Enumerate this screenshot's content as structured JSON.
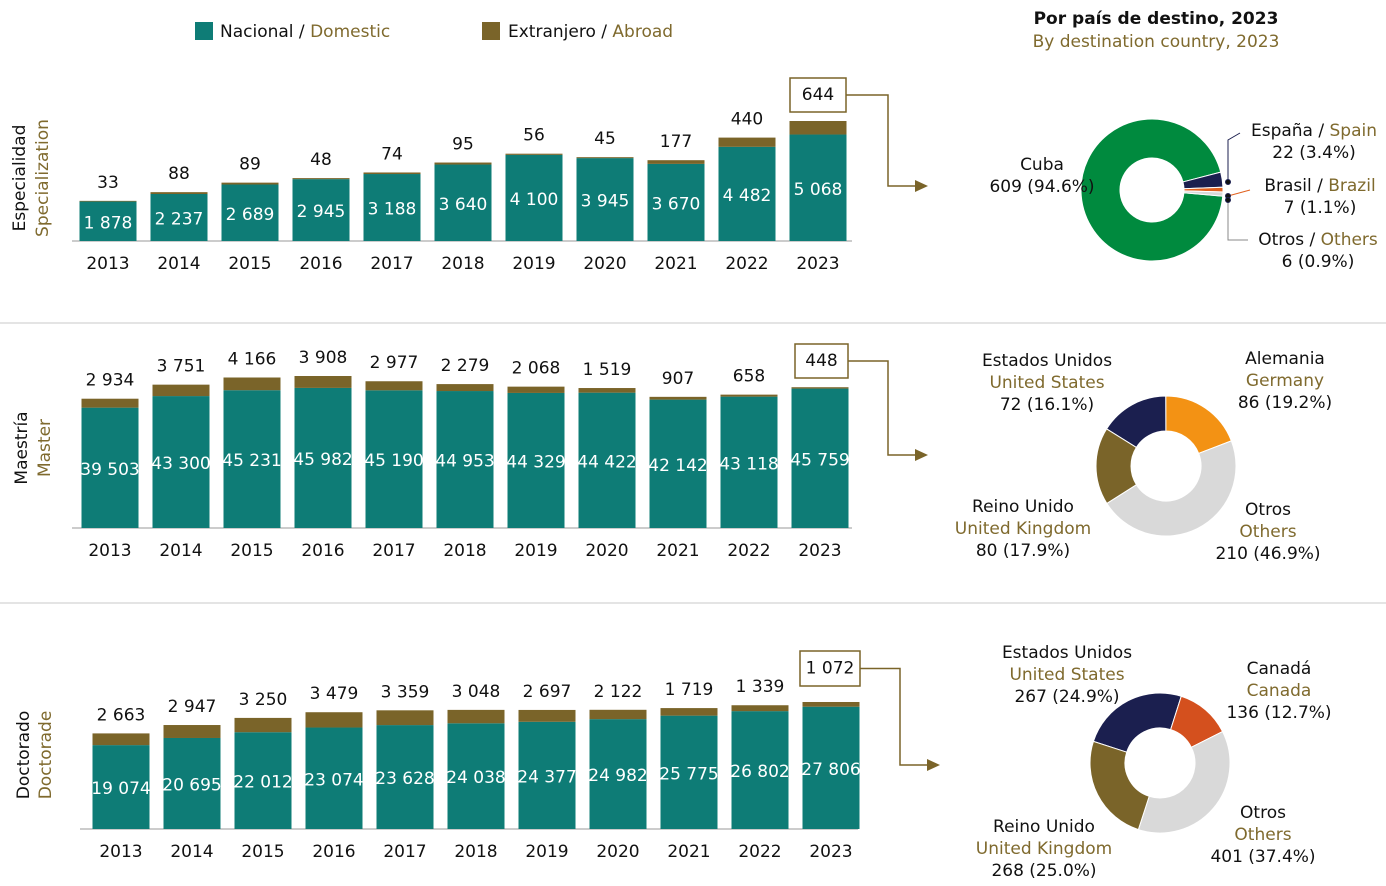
{
  "chart_data": [
    {
      "type": "bar",
      "stacked": true,
      "ylabel": "Especialidad",
      "ylabel_en": "Specialization",
      "categories": [
        "2013",
        "2014",
        "2015",
        "2016",
        "2017",
        "2018",
        "2019",
        "2020",
        "2021",
        "2022",
        "2023"
      ],
      "series": [
        {
          "name": "Nacional / Domestic",
          "color": "#0e7c76",
          "values": [
            1878,
            2237,
            2689,
            2945,
            3188,
            3640,
            4100,
            3945,
            3670,
            4482,
            5068
          ],
          "value_labels": [
            "1 878",
            "2 237",
            "2 689",
            "2 945",
            "3 188",
            "3 640",
            "4 100",
            "3 945",
            "3 670",
            "4 482",
            "5 068"
          ]
        },
        {
          "name": "Extranjero / Abroad",
          "color": "#7a6429",
          "values": [
            33,
            88,
            89,
            48,
            74,
            95,
            56,
            45,
            177,
            440,
            644
          ]
        }
      ]
    },
    {
      "type": "bar",
      "stacked": true,
      "ylabel": "Maestría",
      "ylabel_en": "Master",
      "categories": [
        "2013",
        "2014",
        "2015",
        "2016",
        "2017",
        "2018",
        "2019",
        "2020",
        "2021",
        "2022",
        "2023"
      ],
      "series": [
        {
          "name": "Nacional / Domestic",
          "color": "#0e7c76",
          "values": [
            39503,
            43300,
            45231,
            45982,
            45190,
            44953,
            44329,
            44422,
            42142,
            43118,
            45759
          ],
          "value_labels": [
            "39 503",
            "43 300",
            "45 231",
            "45 982",
            "45 190",
            "44 953",
            "44 329",
            "44 422",
            "42 142",
            "43 118",
            "45 759"
          ]
        },
        {
          "name": "Extranjero / Abroad",
          "color": "#7a6429",
          "values": [
            2934,
            3751,
            4166,
            3908,
            2977,
            2279,
            2068,
            1519,
            907,
            658,
            448
          ],
          "value_labels": [
            "2 934",
            "3 751",
            "4 166",
            "3 908",
            "2 977",
            "2 279",
            "2 068",
            "1 519",
            "907",
            "658",
            "448"
          ]
        }
      ]
    },
    {
      "type": "bar",
      "stacked": true,
      "ylabel": "Doctorado",
      "ylabel_en": "Doctorade",
      "categories": [
        "2013",
        "2014",
        "2015",
        "2016",
        "2017",
        "2018",
        "2019",
        "2020",
        "2021",
        "2022",
        "2023"
      ],
      "series": [
        {
          "name": "Nacional / Domestic",
          "color": "#0e7c76",
          "values": [
            19074,
            20695,
            22012,
            23074,
            23628,
            24038,
            24377,
            24982,
            25775,
            26802,
            27806
          ],
          "value_labels": [
            "19 074",
            "20 695",
            "22 012",
            "23 074",
            "23 628",
            "24 038",
            "24 377",
            "24 982",
            "25 775",
            "26 802",
            "27 806"
          ]
        },
        {
          "name": "Extranjero / Abroad",
          "color": "#7a6429",
          "values": [
            2663,
            2947,
            3250,
            3479,
            3359,
            3048,
            2697,
            2122,
            1719,
            1339,
            1072
          ],
          "value_labels": [
            "2 663",
            "2 947",
            "3 250",
            "3 479",
            "3 359",
            "3 048",
            "2 697",
            "2 122",
            "1 719",
            "1 339",
            "1 072"
          ]
        }
      ]
    },
    {
      "type": "pie",
      "donut": true,
      "title": "Por país de destino, 2023",
      "subtitle": "By destination country, 2023",
      "labels": [
        "Cuba",
        "España / Spain",
        "Brasil / Brazil",
        "Otros / Others"
      ],
      "values": [
        609,
        22,
        7,
        6
      ],
      "value_labels": [
        "609 (94.6%)",
        "22 (3.4%)",
        "7 (1.1%)",
        "6 (0.9%)"
      ],
      "colors": [
        "#008a3e",
        "#1b1f4f",
        "#e0601e",
        "#d9d9d9"
      ]
    },
    {
      "type": "pie",
      "donut": true,
      "labels": [
        "Estados Unidos",
        "Alemania",
        "Otros",
        "Reino Unido"
      ],
      "labels_en": [
        "United States",
        "Germany",
        "Others",
        "United Kingdom"
      ],
      "values": [
        72,
        86,
        210,
        80
      ],
      "value_labels": [
        "72 (16.1%)",
        "86 (19.2%)",
        "210 (46.9%)",
        "80 (17.9%)"
      ],
      "colors": [
        "#1b1f4f",
        "#f39214",
        "#d9d9d9",
        "#7a6429"
      ]
    },
    {
      "type": "pie",
      "donut": true,
      "labels": [
        "Estados Unidos",
        "Canadá",
        "Otros",
        "Reino Unido"
      ],
      "labels_en": [
        "United States",
        "Canada",
        "Others",
        "United Kingdom"
      ],
      "values": [
        267,
        136,
        401,
        268
      ],
      "value_labels": [
        "267 (24.9%)",
        "136 (12.7%)",
        "401 (37.4%)",
        "268 (25.0%)"
      ],
      "colors": [
        "#1b1f4f",
        "#d4501e",
        "#d9d9d9",
        "#7a6429"
      ]
    }
  ]
}
